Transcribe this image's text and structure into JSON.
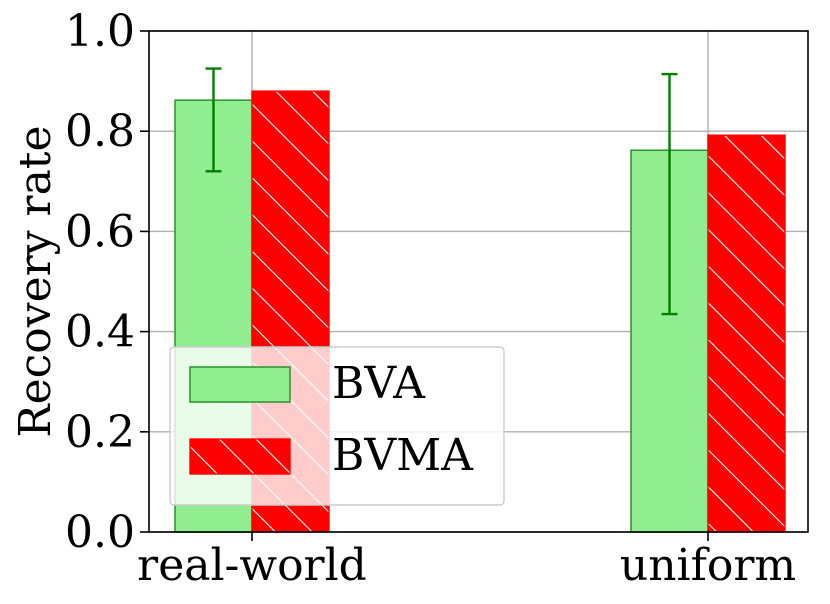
{
  "chart_data": {
    "type": "bar",
    "categories": [
      "real-world",
      "uniform"
    ],
    "series": [
      {
        "name": "BVA",
        "values": [
          0.862,
          0.762
        ],
        "error": [
          [
            0.142,
            0.327
          ],
          [
            0.063,
            0.152
          ]
        ],
        "color": "#90ee90",
        "edge_color": "#228b22",
        "error_color": "#008000",
        "hatch": "none"
      },
      {
        "name": "BVMA",
        "values": [
          0.88,
          0.792
        ],
        "color": "#ff0000",
        "edge_color": "#ff0000",
        "hatch": "diagonal-white"
      }
    ],
    "title": "",
    "xlabel": "",
    "ylabel": "Recovery rate",
    "ylim": [
      0.0,
      1.0
    ],
    "yticks": [
      "0.0",
      "0.2",
      "0.4",
      "0.6",
      "0.8",
      "1.0"
    ],
    "grid": true,
    "legend_position": "lower-left"
  }
}
